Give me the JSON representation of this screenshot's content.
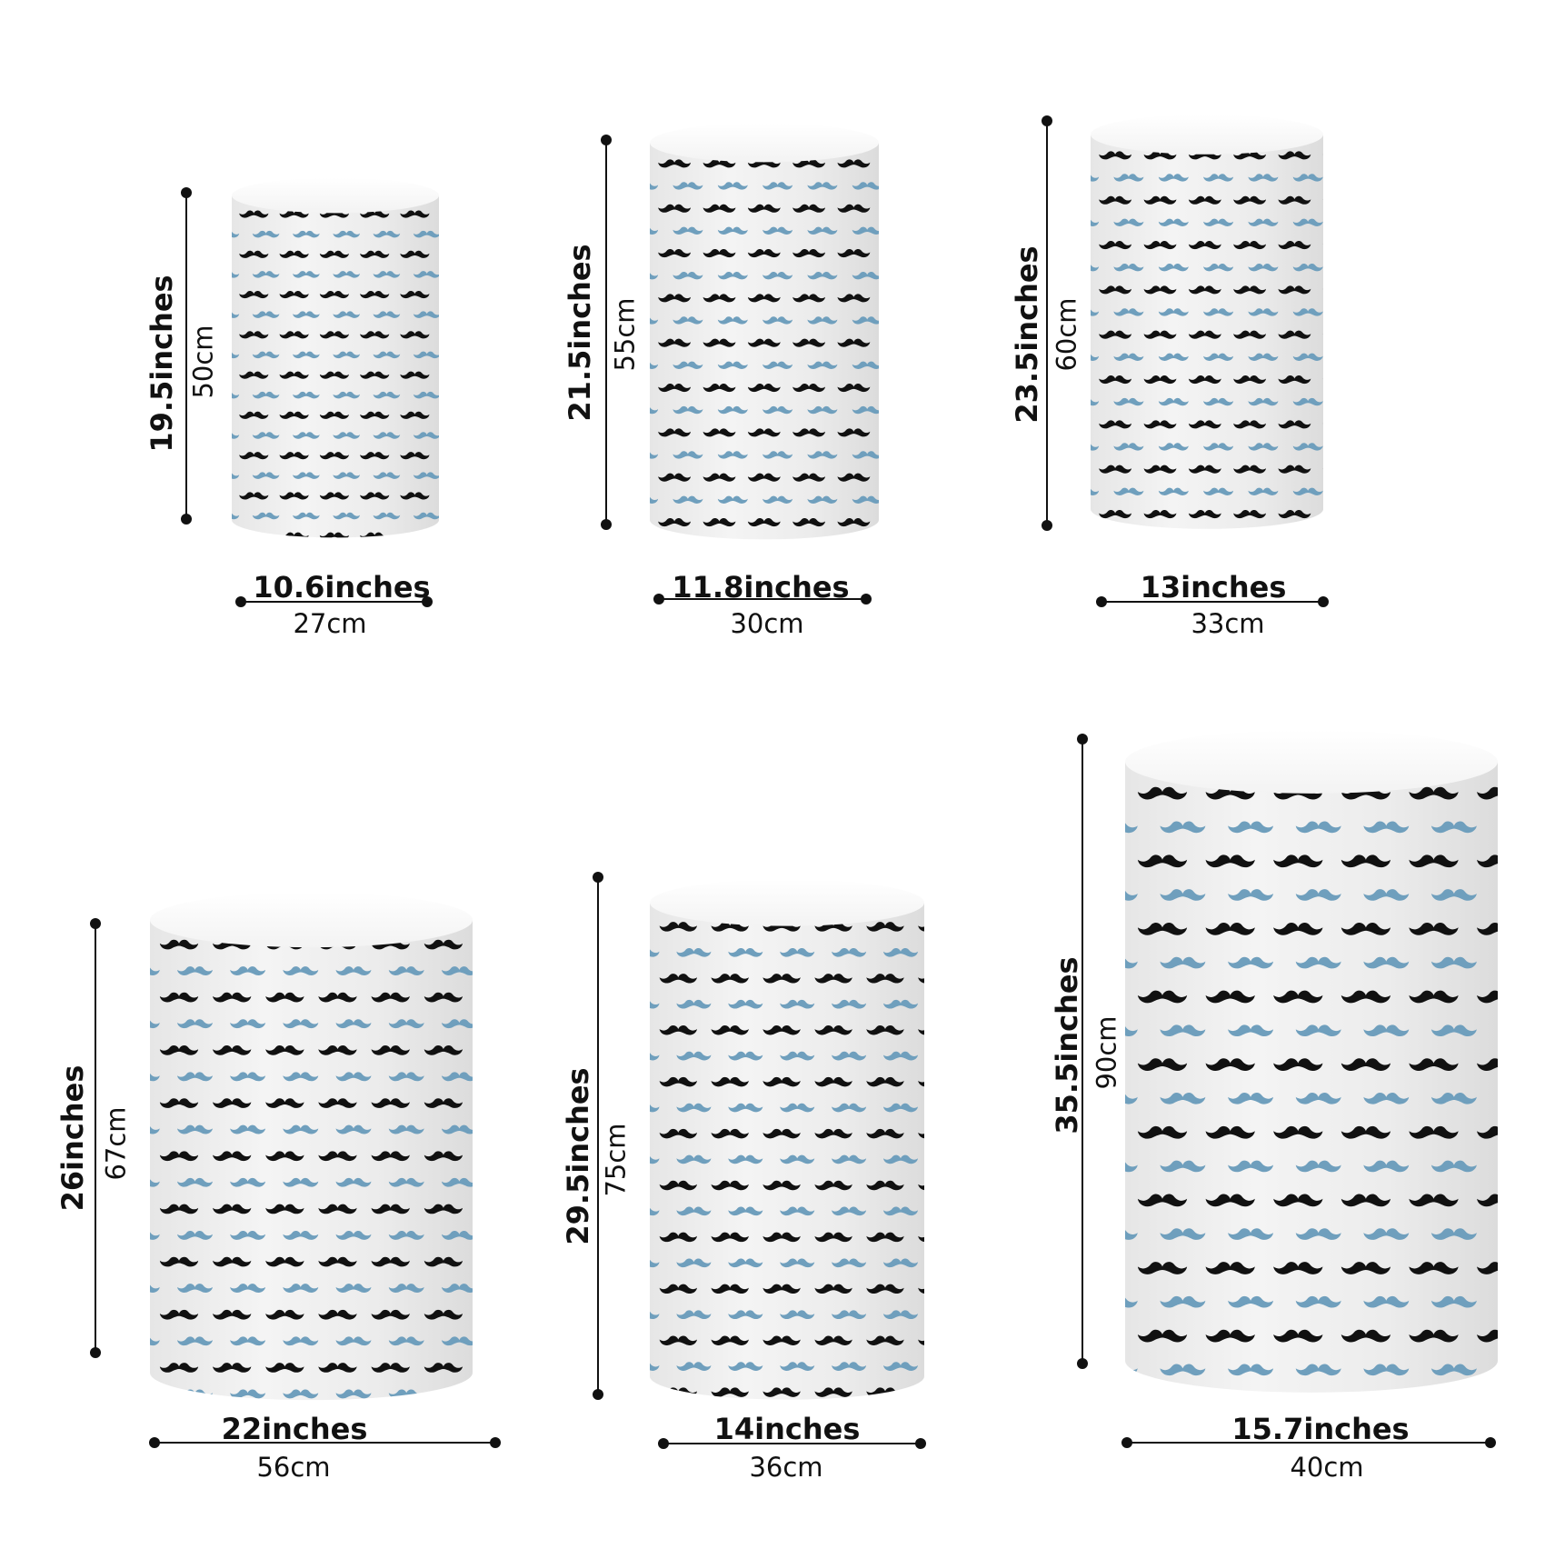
{
  "colors": {
    "background": "#ffffff",
    "cylinder_body": "#ececec",
    "cylinder_top": "#ffffff",
    "pattern_dark": "#111111",
    "pattern_blue": "#6f9fbd",
    "measure_line": "#111111"
  },
  "pattern": {
    "motif": "mustache-icon",
    "rows": "alternating black and blue mustaches"
  },
  "plinths": [
    {
      "height_in": "19.5inches",
      "height_cm": "50cm",
      "width_in": "10.6inches",
      "width_cm": "27cm"
    },
    {
      "height_in": "21.5inches",
      "height_cm": "55cm",
      "width_in": "11.8inches",
      "width_cm": "30cm"
    },
    {
      "height_in": "23.5inches",
      "height_cm": "60cm",
      "width_in": "13inches",
      "width_cm": "33cm"
    },
    {
      "height_in": "26inches",
      "height_cm": "67cm",
      "width_in": "22inches",
      "width_cm": "56cm"
    },
    {
      "height_in": "29.5inches",
      "height_cm": "75cm",
      "width_in": "14inches",
      "width_cm": "36cm"
    },
    {
      "height_in": "35.5inches",
      "height_cm": "90cm",
      "width_in": "15.7inches",
      "width_cm": "40cm"
    }
  ]
}
